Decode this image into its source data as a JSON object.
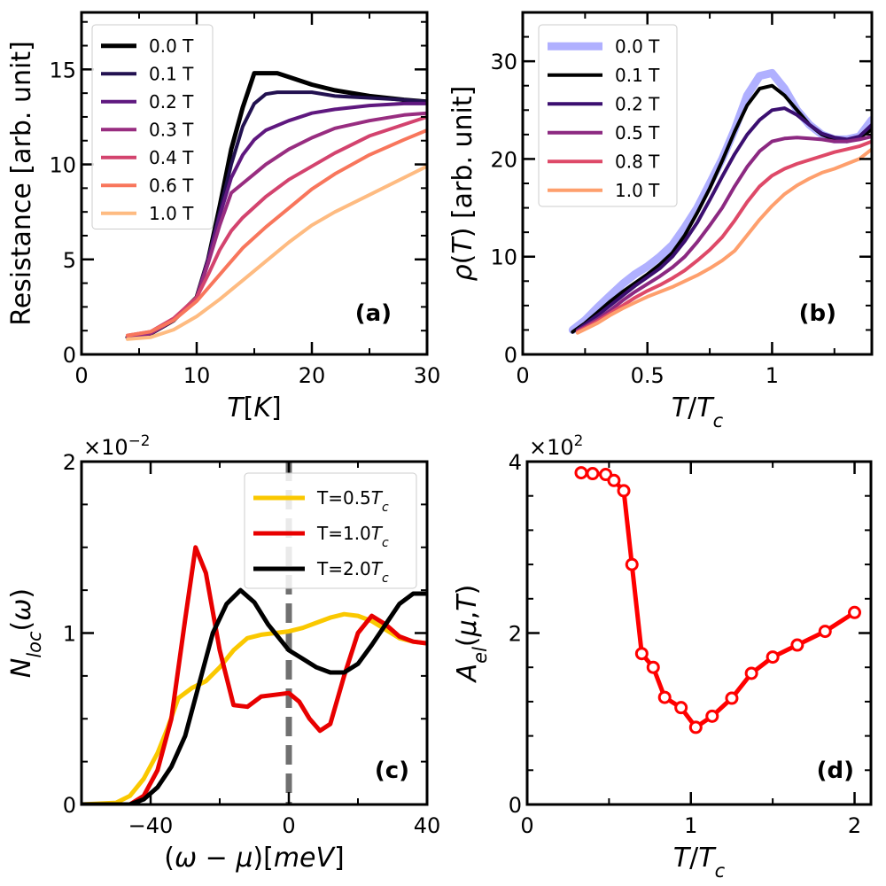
{
  "chart_data": [
    {
      "id": "a",
      "type": "line",
      "panel_label": "(a)",
      "xlabel": "T[K]",
      "ylabel": "Resistance [arb. unit]",
      "xlim": [
        0,
        30
      ],
      "ylim": [
        0,
        18
      ],
      "xticks": [
        0,
        10,
        20,
        30
      ],
      "yticks": [
        0,
        5,
        10,
        15
      ],
      "legend_position": "top-left",
      "series": [
        {
          "name": "0.0 T",
          "color": "#000000",
          "x": [
            4,
            6,
            8,
            10,
            11,
            12,
            13,
            14,
            15,
            16,
            17,
            18,
            20,
            22,
            25,
            28,
            30
          ],
          "y": [
            0.9,
            1.1,
            1.8,
            3.0,
            5.0,
            7.8,
            10.8,
            13.0,
            14.8,
            14.8,
            14.8,
            14.6,
            14.2,
            13.9,
            13.6,
            13.4,
            13.3
          ]
        },
        {
          "name": "0.1 T",
          "color": "#221150",
          "x": [
            4,
            6,
            8,
            10,
            11,
            12,
            13,
            14,
            15,
            16,
            17,
            18,
            20,
            22,
            25,
            28,
            30
          ],
          "y": [
            0.9,
            1.1,
            1.8,
            3.0,
            5.0,
            7.5,
            10.0,
            12.0,
            13.2,
            13.7,
            13.8,
            13.8,
            13.8,
            13.6,
            13.5,
            13.4,
            13.3
          ]
        },
        {
          "name": "0.2 T",
          "color": "#5f187f",
          "x": [
            4,
            6,
            8,
            10,
            11,
            12,
            13,
            14,
            15,
            16,
            18,
            20,
            22,
            25,
            28,
            30
          ],
          "y": [
            0.9,
            1.1,
            1.8,
            3.0,
            5.0,
            7.3,
            9.3,
            10.5,
            11.3,
            11.8,
            12.3,
            12.7,
            12.9,
            13.1,
            13.2,
            13.2
          ]
        },
        {
          "name": "0.3 T",
          "color": "#982d80",
          "x": [
            4,
            6,
            8,
            10,
            11,
            12,
            13,
            14,
            15,
            16,
            18,
            20,
            22,
            25,
            28,
            30
          ],
          "y": [
            0.9,
            1.1,
            1.8,
            3.0,
            4.8,
            6.8,
            8.5,
            9.0,
            9.5,
            10.0,
            10.8,
            11.4,
            11.9,
            12.3,
            12.6,
            12.7
          ]
        },
        {
          "name": "0.4 T",
          "color": "#d3436e",
          "x": [
            4,
            6,
            8,
            10,
            11,
            12,
            13,
            14,
            16,
            18,
            20,
            22,
            25,
            28,
            30
          ],
          "y": [
            1.0,
            1.2,
            1.9,
            3.0,
            4.2,
            5.5,
            6.5,
            7.2,
            8.3,
            9.2,
            9.9,
            10.6,
            11.5,
            12.1,
            12.5
          ]
        },
        {
          "name": "0.6 T",
          "color": "#f8765c",
          "x": [
            4,
            6,
            8,
            10,
            12,
            14,
            16,
            18,
            20,
            22,
            25,
            28,
            30
          ],
          "y": [
            1.0,
            1.2,
            1.8,
            2.8,
            4.2,
            5.6,
            6.7,
            7.7,
            8.7,
            9.5,
            10.5,
            11.3,
            11.8
          ]
        },
        {
          "name": "1.0 T",
          "color": "#febb81",
          "x": [
            4,
            6,
            8,
            10,
            12,
            14,
            16,
            18,
            20,
            22,
            25,
            28,
            30
          ],
          "y": [
            0.8,
            0.9,
            1.3,
            2.0,
            2.9,
            3.9,
            4.9,
            5.9,
            6.8,
            7.5,
            8.4,
            9.3,
            9.9
          ]
        }
      ]
    },
    {
      "id": "b",
      "type": "line",
      "panel_label": "(b)",
      "xlabel": "T/T_c",
      "ylabel": "ρ(T) [arb. unit]",
      "xlim": [
        0,
        1.4
      ],
      "ylim": [
        0,
        35
      ],
      "xticks": [
        0,
        0.5,
        1.0
      ],
      "yticks": [
        0,
        10,
        20,
        30
      ],
      "legend_position": "top-left",
      "series": [
        {
          "name": "0.0 T",
          "color": "#b0b0ff",
          "x": [
            0.2,
            0.25,
            0.3,
            0.35,
            0.4,
            0.45,
            0.5,
            0.55,
            0.6,
            0.65,
            0.7,
            0.75,
            0.8,
            0.85,
            0.9,
            0.95,
            1.0,
            1.05,
            1.1,
            1.15,
            1.2,
            1.25,
            1.3,
            1.35,
            1.4
          ],
          "y": [
            2.5,
            3.5,
            4.8,
            6.0,
            7.2,
            8.2,
            9.0,
            10.0,
            11.2,
            13.0,
            15.0,
            17.5,
            20.0,
            23.0,
            26.5,
            28.5,
            28.8,
            27.2,
            25.0,
            23.5,
            22.5,
            22.0,
            22.0,
            22.3,
            24.0
          ]
        },
        {
          "name": "0.1 T",
          "color": "#000000",
          "x": [
            0.2,
            0.25,
            0.3,
            0.35,
            0.4,
            0.45,
            0.5,
            0.55,
            0.6,
            0.65,
            0.7,
            0.75,
            0.8,
            0.85,
            0.9,
            0.95,
            1.0,
            1.05,
            1.1,
            1.15,
            1.2,
            1.25,
            1.3,
            1.35,
            1.4
          ],
          "y": [
            2.3,
            3.2,
            4.3,
            5.4,
            6.4,
            7.3,
            8.2,
            9.2,
            10.4,
            12.2,
            14.5,
            17.0,
            19.8,
            22.8,
            25.5,
            27.2,
            27.5,
            26.5,
            25.0,
            23.5,
            22.5,
            22.0,
            21.8,
            22.2,
            23.0
          ]
        },
        {
          "name": "0.2 T",
          "color": "#3b0f70",
          "x": [
            0.22,
            0.3,
            0.35,
            0.4,
            0.45,
            0.5,
            0.55,
            0.6,
            0.65,
            0.7,
            0.75,
            0.8,
            0.85,
            0.9,
            0.95,
            1.0,
            1.05,
            1.1,
            1.15,
            1.2,
            1.25,
            1.3,
            1.35,
            1.4
          ],
          "y": [
            2.5,
            4.0,
            5.0,
            6.0,
            7.0,
            7.9,
            8.8,
            10.0,
            11.6,
            13.5,
            15.8,
            18.2,
            20.5,
            22.5,
            24.0,
            25.0,
            25.2,
            24.5,
            23.5,
            22.6,
            22.2,
            22.0,
            22.3,
            23.5
          ]
        },
        {
          "name": "0.5 T",
          "color": "#8c2981",
          "x": [
            0.22,
            0.3,
            0.35,
            0.4,
            0.45,
            0.5,
            0.55,
            0.6,
            0.65,
            0.7,
            0.75,
            0.8,
            0.85,
            0.9,
            0.95,
            1.0,
            1.05,
            1.1,
            1.15,
            1.2,
            1.25,
            1.3,
            1.35,
            1.4
          ],
          "y": [
            2.4,
            3.6,
            4.5,
            5.5,
            6.4,
            7.2,
            8.0,
            8.9,
            10.0,
            11.5,
            13.2,
            15.0,
            17.2,
            19.2,
            20.8,
            21.8,
            22.1,
            22.2,
            22.1,
            22.0,
            21.8,
            21.8,
            22.0,
            22.3
          ]
        },
        {
          "name": "0.8 T",
          "color": "#de4968",
          "x": [
            0.22,
            0.3,
            0.35,
            0.4,
            0.45,
            0.5,
            0.55,
            0.6,
            0.65,
            0.7,
            0.75,
            0.8,
            0.85,
            0.9,
            0.95,
            1.0,
            1.05,
            1.1,
            1.15,
            1.2,
            1.25,
            1.3,
            1.35,
            1.4
          ],
          "y": [
            2.3,
            3.4,
            4.2,
            5.0,
            5.8,
            6.5,
            7.1,
            7.8,
            8.6,
            9.6,
            10.7,
            12.0,
            13.7,
            15.6,
            17.2,
            18.3,
            19.0,
            19.5,
            19.9,
            20.3,
            20.7,
            21.0,
            21.3,
            21.8
          ]
        },
        {
          "name": "1.0 T",
          "color": "#fe9f6d",
          "x": [
            0.22,
            0.3,
            0.35,
            0.4,
            0.45,
            0.5,
            0.55,
            0.6,
            0.65,
            0.7,
            0.75,
            0.8,
            0.85,
            0.9,
            0.95,
            1.0,
            1.05,
            1.1,
            1.15,
            1.2,
            1.25,
            1.3,
            1.35,
            1.4
          ],
          "y": [
            2.2,
            3.2,
            4.0,
            4.7,
            5.3,
            5.9,
            6.4,
            6.9,
            7.5,
            8.1,
            8.8,
            9.6,
            10.6,
            12.2,
            13.8,
            15.2,
            16.4,
            17.3,
            18.0,
            18.6,
            19.0,
            19.5,
            20.0,
            21.0
          ]
        }
      ]
    },
    {
      "id": "c",
      "type": "line",
      "panel_label": "(c)",
      "xlabel": "(ω − μ)[meV]",
      "ylabel": "N_loc(ω)",
      "multiplier": "×10^-2",
      "xlim": [
        -60,
        40
      ],
      "ylim": [
        0,
        2
      ],
      "xticks": [
        -40,
        0,
        40
      ],
      "yticks": [
        0,
        1,
        2
      ],
      "vline_x": 0,
      "legend_position": "top-right",
      "series": [
        {
          "name": "T=0.5T_c",
          "color": "#fac800",
          "x": [
            -60,
            -50,
            -46,
            -42,
            -38,
            -35,
            -32,
            -28,
            -24,
            -20,
            -16,
            -12,
            -8,
            -4,
            0,
            4,
            8,
            12,
            16,
            20,
            24,
            28,
            32,
            36,
            40
          ],
          "y": [
            0.0,
            0.01,
            0.05,
            0.15,
            0.3,
            0.45,
            0.62,
            0.68,
            0.72,
            0.8,
            0.9,
            0.97,
            0.99,
            1.0,
            1.01,
            1.03,
            1.06,
            1.09,
            1.11,
            1.1,
            1.07,
            1.02,
            0.97,
            0.95,
            0.94
          ]
        },
        {
          "name": "T=1.0T_c",
          "color": "#e80000",
          "x": [
            -60,
            -50,
            -46,
            -42,
            -38,
            -34,
            -30,
            -27,
            -24,
            -20,
            -16,
            -12,
            -8,
            -4,
            0,
            3,
            6,
            9,
            12,
            16,
            20,
            24,
            28,
            32,
            36,
            40
          ],
          "y": [
            0.0,
            0.0,
            0.0,
            0.05,
            0.2,
            0.5,
            1.08,
            1.5,
            1.35,
            0.9,
            0.58,
            0.57,
            0.63,
            0.64,
            0.65,
            0.6,
            0.5,
            0.43,
            0.47,
            0.75,
            1.0,
            1.1,
            1.05,
            0.98,
            0.95,
            0.94
          ]
        },
        {
          "name": "T=2.0T_c",
          "color": "#000000",
          "x": [
            -60,
            -50,
            -46,
            -42,
            -38,
            -34,
            -30,
            -26,
            -22,
            -18,
            -14,
            -10,
            -6,
            -2,
            0,
            4,
            8,
            12,
            16,
            20,
            24,
            28,
            32,
            36,
            40
          ],
          "y": [
            0.0,
            0.0,
            0.0,
            0.03,
            0.1,
            0.22,
            0.4,
            0.7,
            1.0,
            1.17,
            1.25,
            1.18,
            1.05,
            0.95,
            0.9,
            0.85,
            0.8,
            0.77,
            0.77,
            0.82,
            0.93,
            1.05,
            1.17,
            1.23,
            1.23
          ]
        }
      ]
    },
    {
      "id": "d",
      "type": "line",
      "panel_label": "(d)",
      "xlabel": "T/T_c",
      "ylabel": "A_el(μ,T)",
      "multiplier": "×10^2",
      "xlim": [
        0,
        2.1
      ],
      "ylim": [
        0,
        4
      ],
      "xticks": [
        0,
        1,
        2
      ],
      "yticks": [
        0,
        2,
        4
      ],
      "legend_position": "none",
      "series": [
        {
          "name": "A_el",
          "color": "#ff0000",
          "marker": "open-circle",
          "x": [
            0.33,
            0.4,
            0.48,
            0.53,
            0.59,
            0.64,
            0.7,
            0.77,
            0.84,
            0.94,
            1.03,
            1.13,
            1.25,
            1.37,
            1.5,
            1.65,
            1.82,
            2.0
          ],
          "y": [
            3.87,
            3.86,
            3.85,
            3.78,
            3.66,
            2.8,
            1.76,
            1.6,
            1.25,
            1.13,
            0.9,
            1.03,
            1.24,
            1.53,
            1.72,
            1.86,
            2.02,
            2.24
          ]
        }
      ]
    }
  ]
}
